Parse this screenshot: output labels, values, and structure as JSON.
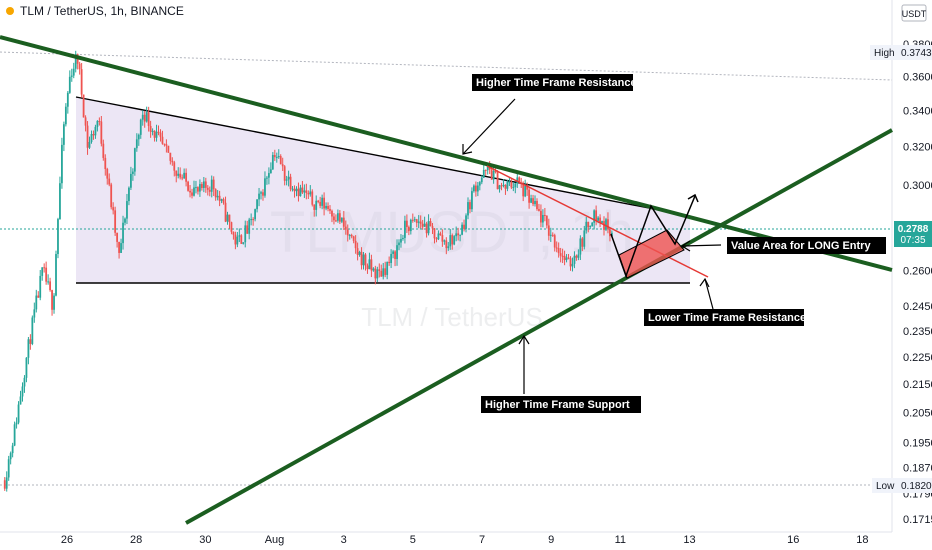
{
  "header": {
    "symbol": "TLM / TetherUS, 1h, BINANCE"
  },
  "currency": "USDT",
  "watermark": {
    "symbol": "TLMUSDT, 1h",
    "name": "TLM / TetherUS"
  },
  "price_tags": [
    {
      "label": "High",
      "value": "0.3743",
      "price": 0.3743
    },
    {
      "label": "Low",
      "value": "0.1820",
      "price": 0.182
    }
  ],
  "current_price": {
    "value": "0.2788",
    "countdown": "07:35",
    "price": 0.2788,
    "color": "#26a69a"
  },
  "chart_data": {
    "type": "candlestick",
    "y_axis": {
      "ticks": [
        "0.3800",
        "0.3600",
        "0.3400",
        "0.3200",
        "0.3000",
        "0.2800",
        "0.2600",
        "0.2450",
        "0.2350",
        "0.2250",
        "0.2150",
        "0.2050",
        "0.1950",
        "0.1870",
        "0.1790",
        "0.1715"
      ],
      "scale": "log",
      "range": [
        0.1715,
        0.385
      ]
    },
    "x_axis": {
      "ticks": [
        "26",
        "28",
        "30",
        "Aug",
        "3",
        "5",
        "7",
        "9",
        "11",
        "13",
        "16",
        "18"
      ],
      "day_index": [
        26,
        28,
        30,
        32,
        34,
        36,
        38,
        40,
        42,
        44,
        47,
        49
      ],
      "range": [
        24.2,
        50.0
      ]
    },
    "price_path": [
      {
        "day": 24.2,
        "price": 0.183
      },
      {
        "day": 24.5,
        "price": 0.2
      },
      {
        "day": 24.9,
        "price": 0.23
      },
      {
        "day": 25.3,
        "price": 0.26
      },
      {
        "day": 25.6,
        "price": 0.245
      },
      {
        "day": 25.9,
        "price": 0.33
      },
      {
        "day": 26.1,
        "price": 0.362
      },
      {
        "day": 26.3,
        "price": 0.372
      },
      {
        "day": 26.6,
        "price": 0.32
      },
      {
        "day": 26.9,
        "price": 0.335
      },
      {
        "day": 27.2,
        "price": 0.3
      },
      {
        "day": 27.5,
        "price": 0.265
      },
      {
        "day": 27.8,
        "price": 0.3
      },
      {
        "day": 28.2,
        "price": 0.34
      },
      {
        "day": 28.6,
        "price": 0.325
      },
      {
        "day": 29.0,
        "price": 0.312
      },
      {
        "day": 29.4,
        "price": 0.302
      },
      {
        "day": 29.8,
        "price": 0.296
      },
      {
        "day": 30.2,
        "price": 0.301
      },
      {
        "day": 30.6,
        "price": 0.285
      },
      {
        "day": 30.9,
        "price": 0.272
      },
      {
        "day": 31.3,
        "price": 0.28
      },
      {
        "day": 31.7,
        "price": 0.3
      },
      {
        "day": 32.0,
        "price": 0.318
      },
      {
        "day": 32.3,
        "price": 0.305
      },
      {
        "day": 32.7,
        "price": 0.298
      },
      {
        "day": 33.1,
        "price": 0.292
      },
      {
        "day": 33.5,
        "price": 0.29
      },
      {
        "day": 33.9,
        "price": 0.283
      },
      {
        "day": 34.3,
        "price": 0.27
      },
      {
        "day": 34.7,
        "price": 0.262
      },
      {
        "day": 35.0,
        "price": 0.258
      },
      {
        "day": 35.4,
        "price": 0.265
      },
      {
        "day": 35.8,
        "price": 0.28
      },
      {
        "day": 36.2,
        "price": 0.282
      },
      {
        "day": 36.6,
        "price": 0.277
      },
      {
        "day": 37.0,
        "price": 0.272
      },
      {
        "day": 37.4,
        "price": 0.278
      },
      {
        "day": 37.8,
        "price": 0.3
      },
      {
        "day": 38.2,
        "price": 0.308
      },
      {
        "day": 38.6,
        "price": 0.298
      },
      {
        "day": 39.0,
        "price": 0.302
      },
      {
        "day": 39.4,
        "price": 0.292
      },
      {
        "day": 39.8,
        "price": 0.282
      },
      {
        "day": 40.2,
        "price": 0.27
      },
      {
        "day": 40.5,
        "price": 0.262
      },
      {
        "day": 40.8,
        "price": 0.27
      },
      {
        "day": 41.2,
        "price": 0.286
      },
      {
        "day": 41.5,
        "price": 0.281
      },
      {
        "day": 41.8,
        "price": 0.278
      }
    ]
  },
  "annotations": {
    "htf_resistance": "Higher Time Frame Resistance",
    "htf_support": "Higher Time Frame Support",
    "ltf_resistance": "Lower Time Frame Resistance",
    "value_area": "Value Area for LONG Entry"
  },
  "colors": {
    "up": "#26a69a",
    "down": "#ef5350",
    "trendline_green": "#1b5e20",
    "ltf_red": "#e53935",
    "triangle_fill": "#d9cdec",
    "value_area_fill": "#ef5350"
  }
}
